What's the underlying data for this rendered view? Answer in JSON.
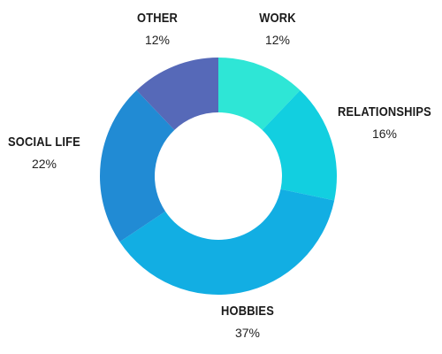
{
  "chart_data": {
    "type": "pie",
    "variant": "donut",
    "title": "",
    "slices": [
      {
        "label": "WORK",
        "value": 12,
        "value_label": "12%",
        "color": "#2ee6d6"
      },
      {
        "label": "RELATIONSHIPS",
        "value": 16,
        "value_label": "16%",
        "color": "#12cfe0"
      },
      {
        "label": "HOBBIES",
        "value": 37,
        "value_label": "37%",
        "color": "#12aee3"
      },
      {
        "label": "SOCIAL LIFE",
        "value": 22,
        "value_label": "22%",
        "color": "#218bd4"
      },
      {
        "label": "OTHER",
        "value": 12,
        "value_label": "12%",
        "color": "#5669b8"
      }
    ],
    "legend": "none",
    "start_angle": "12 o'clock",
    "direction": "clockwise"
  }
}
